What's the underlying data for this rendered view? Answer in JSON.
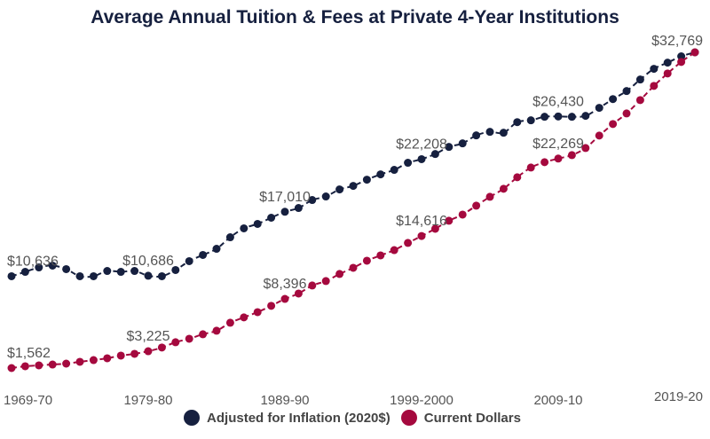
{
  "chart_data": {
    "type": "line",
    "title": "Average Annual Tuition & Fees at Private 4-Year Institutions",
    "xlabel": "",
    "ylabel": "",
    "grid": false,
    "legend_position": "bottom",
    "x": [
      "1969-70",
      "1970-71",
      "1971-72",
      "1972-73",
      "1973-74",
      "1974-75",
      "1975-76",
      "1976-77",
      "1977-78",
      "1978-79",
      "1979-80",
      "1980-81",
      "1981-82",
      "1982-83",
      "1983-84",
      "1984-85",
      "1985-86",
      "1986-87",
      "1987-88",
      "1988-89",
      "1989-90",
      "1990-91",
      "1991-92",
      "1992-93",
      "1993-94",
      "1994-95",
      "1995-96",
      "1996-97",
      "1997-98",
      "1998-99",
      "1999-2000",
      "2000-01",
      "2001-02",
      "2002-03",
      "2003-04",
      "2004-05",
      "2005-06",
      "2006-07",
      "2007-08",
      "2008-09",
      "2009-10",
      "2010-11",
      "2011-12",
      "2012-13",
      "2013-14",
      "2014-15",
      "2015-16",
      "2016-17",
      "2017-18",
      "2018-19",
      "2019-20"
    ],
    "x_tick_labels": [
      "1969-70",
      "1979-80",
      "1989-90",
      "1999-2000",
      "2009-10",
      "2019-20"
    ],
    "x_tick_indices": [
      0,
      10,
      20,
      30,
      40,
      50
    ],
    "ylim": [
      1562,
      32769
    ],
    "series": [
      {
        "name": "Adjustedfor Inflation (2020$)",
        "color": "#16203f",
        "values": [
          10636,
          11070,
          11510,
          11690,
          11340,
          10640,
          10640,
          11160,
          11070,
          11160,
          10686,
          10640,
          11250,
          12130,
          12740,
          13350,
          14490,
          15370,
          15810,
          16420,
          17010,
          17380,
          18170,
          18520,
          19220,
          19570,
          20180,
          20710,
          21150,
          21850,
          22208,
          22720,
          23420,
          23770,
          24560,
          24910,
          24820,
          25870,
          26050,
          26400,
          26430,
          26400,
          26490,
          27280,
          28150,
          28940,
          30080,
          31140,
          31750,
          32370,
          32769
        ]
      },
      {
        "name": "Current Dollars",
        "color": "#a5093e",
        "values": [
          1562,
          1740,
          1830,
          1910,
          2000,
          2180,
          2350,
          2530,
          2790,
          2970,
          3225,
          3590,
          4110,
          4460,
          4900,
          5250,
          6040,
          6570,
          7090,
          7710,
          8396,
          8930,
          9720,
          10160,
          10860,
          11470,
          12170,
          12700,
          13220,
          13930,
          14616,
          15330,
          16120,
          16730,
          17610,
          18490,
          19280,
          20420,
          21380,
          21910,
          22269,
          22610,
          23310,
          24540,
          25680,
          26730,
          28050,
          29450,
          30680,
          31820,
          32769
        ]
      }
    ],
    "annotations": [
      {
        "series": 0,
        "index": 0,
        "text": "$10,636"
      },
      {
        "series": 0,
        "index": 10,
        "text": "$10,686"
      },
      {
        "series": 0,
        "index": 20,
        "text": "$17,010"
      },
      {
        "series": 0,
        "index": 30,
        "text": "$22,208"
      },
      {
        "series": 0,
        "index": 40,
        "text": "$26,430"
      },
      {
        "series": 0,
        "index": 50,
        "text": "$32,769"
      },
      {
        "series": 1,
        "index": 0,
        "text": "$1,562"
      },
      {
        "series": 1,
        "index": 10,
        "text": "$3,225"
      },
      {
        "series": 1,
        "index": 20,
        "text": "$8,396"
      },
      {
        "series": 1,
        "index": 30,
        "text": "$14,616"
      },
      {
        "series": 1,
        "index": 40,
        "text": "$22,269"
      }
    ]
  },
  "legend": {
    "items": [
      {
        "label": "Adjusted for Inflation (2020$)",
        "color": "#16203f"
      },
      {
        "label": "Current Dollars",
        "color": "#a5093e"
      }
    ]
  }
}
